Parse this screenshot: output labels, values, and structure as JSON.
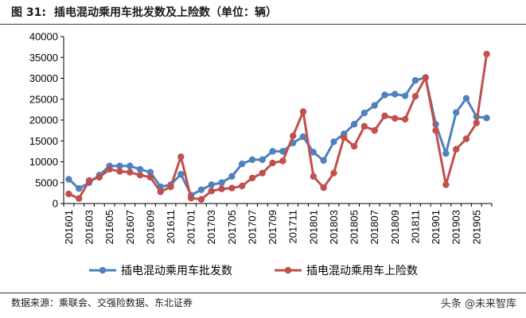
{
  "figure": {
    "number_label": "图 31:",
    "title": "插电混动乘用车批发数及上险数（单位：辆）",
    "source": "数据来源：乘联会、交强险数据、东北证券",
    "watermark": "头条 @未来智库"
  },
  "chart_data": {
    "type": "line",
    "x": [
      "201601",
      "201602",
      "201603",
      "201604",
      "201605",
      "201606",
      "201607",
      "201608",
      "201609",
      "201610",
      "201611",
      "201612",
      "201701",
      "201702",
      "201703",
      "201704",
      "201705",
      "201706",
      "201707",
      "201708",
      "201709",
      "201710",
      "201711",
      "201712",
      "201801",
      "201802",
      "201803",
      "201804",
      "201805",
      "201806",
      "201807",
      "201808",
      "201809",
      "201810",
      "201811",
      "201812",
      "201901",
      "201902",
      "201903",
      "201904",
      "201905",
      "201906"
    ],
    "x_tick_labels": [
      "201601",
      "201603",
      "201605",
      "201607",
      "201609",
      "201611",
      "201701",
      "201703",
      "201705",
      "201707",
      "201709",
      "201711",
      "201801",
      "201803",
      "201805",
      "201807",
      "201809",
      "201811",
      "201901",
      "201903",
      "201905"
    ],
    "y_ticks": [
      0,
      5000,
      10000,
      15000,
      20000,
      25000,
      30000,
      35000,
      40000
    ],
    "ylim": [
      0,
      40000
    ],
    "legend_position": "bottom",
    "grid": false,
    "series": [
      {
        "name": "插电混动乘用车批发数",
        "color": "#4f81bd",
        "values": [
          5800,
          3600,
          5000,
          6800,
          9000,
          9000,
          9000,
          8200,
          7500,
          4000,
          4500,
          7000,
          2000,
          3300,
          4500,
          5000,
          6500,
          9500,
          10500,
          10500,
          12500,
          12500,
          14500,
          16000,
          12300,
          10300,
          14800,
          16700,
          19000,
          21700,
          23500,
          26000,
          26200,
          25800,
          29500,
          30200,
          19000,
          12000,
          21800,
          25200,
          20800,
          20500
        ]
      },
      {
        "name": "插电混动乘用车上险数",
        "color": "#c0504d",
        "values": [
          2300,
          1200,
          5500,
          6300,
          8200,
          7700,
          7500,
          6800,
          6300,
          2800,
          4000,
          11200,
          1300,
          1000,
          3000,
          3500,
          3700,
          4200,
          6100,
          7300,
          9700,
          10200,
          16200,
          22000,
          6500,
          3800,
          7300,
          15800,
          13700,
          18500,
          17500,
          21000,
          20400,
          20200,
          25700,
          30200,
          17500,
          4500,
          13000,
          15500,
          19300,
          35800
        ]
      }
    ]
  }
}
